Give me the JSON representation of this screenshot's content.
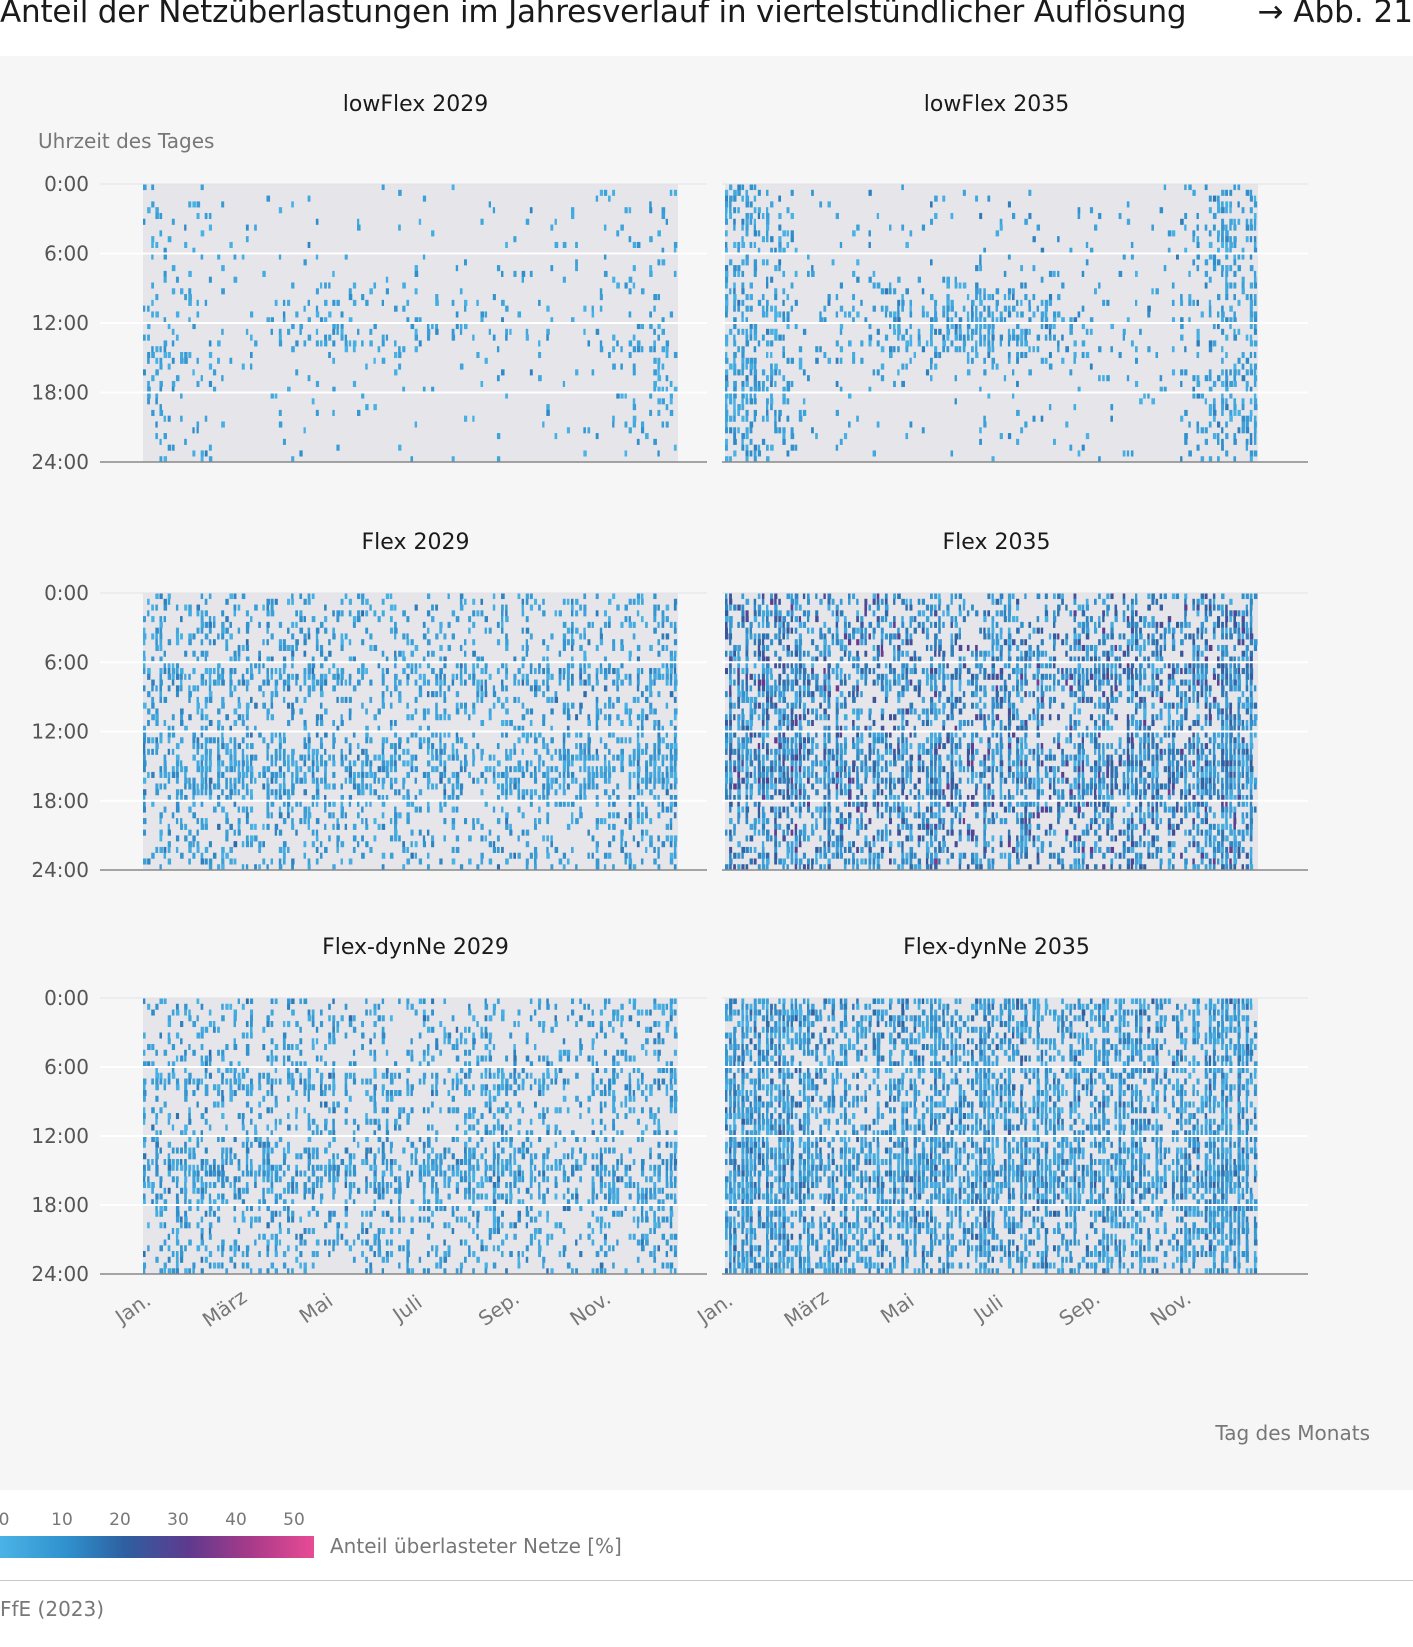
{
  "header": {
    "title": "Anteil der Netzüberlastungen im Jahresverlauf in viertelstündlicher Auflösung",
    "figure_ref": "→ Abb. 21"
  },
  "source": "FfE (2023)",
  "legend": {
    "label": "Anteil überlasteter Netze [%]",
    "ticks": [
      "0",
      "10",
      "20",
      "30",
      "40",
      "50"
    ],
    "colors": [
      "#4ab3e6",
      "#2f8fcc",
      "#2e5fa0",
      "#5e3a8e",
      "#a93a8a",
      "#e84b94"
    ]
  },
  "colors": {
    "panel_background": "#f6f6f7",
    "plot_background": "#e6e6ea",
    "gridline": "#ffffff",
    "axis_line": "#888888"
  },
  "chart_data": {
    "type": "heatmap",
    "ylabel": "Uhrzeit des Tages",
    "xlabel": "Tag des Monats",
    "y_ticks": [
      "0:00",
      "6:00",
      "12:00",
      "18:00",
      "24:00"
    ],
    "x_ticks": [
      "Jan.",
      "März",
      "Mai",
      "Juli",
      "Sep.",
      "Nov."
    ],
    "ylim": [
      0,
      24
    ],
    "xlim_days": [
      1,
      365
    ],
    "value_range": [
      0,
      50
    ],
    "grid": true,
    "panels": [
      {
        "title": "lowFlex 2029",
        "intensity": "low",
        "hotspots": [
          "Jan–Feb all day",
          "Apr–Aug 9:00–14:00",
          "Oct–Dec evenings"
        ]
      },
      {
        "title": "lowFlex 2035",
        "intensity": "low-medium",
        "hotspots": [
          "Jan–Feb all day",
          "Mar–Oct 9:00–16:00",
          "Nov–Dec all day"
        ]
      },
      {
        "title": "Flex 2029",
        "intensity": "medium",
        "hotspots": [
          "whole year",
          "6:00–8:00 band",
          "12:00–17:00 band"
        ]
      },
      {
        "title": "Flex 2035",
        "intensity": "high",
        "hotspots": [
          "whole year",
          "6:00–24:00",
          "peaks up to 50 %"
        ]
      },
      {
        "title": "Flex-dynNe 2029",
        "intensity": "medium",
        "hotspots": [
          "whole year",
          "6:00–8:00 band",
          "12:00–17:00 band"
        ]
      },
      {
        "title": "Flex-dynNe 2035",
        "intensity": "high-uniform",
        "hotspots": [
          "whole year",
          "all hours"
        ]
      }
    ]
  }
}
